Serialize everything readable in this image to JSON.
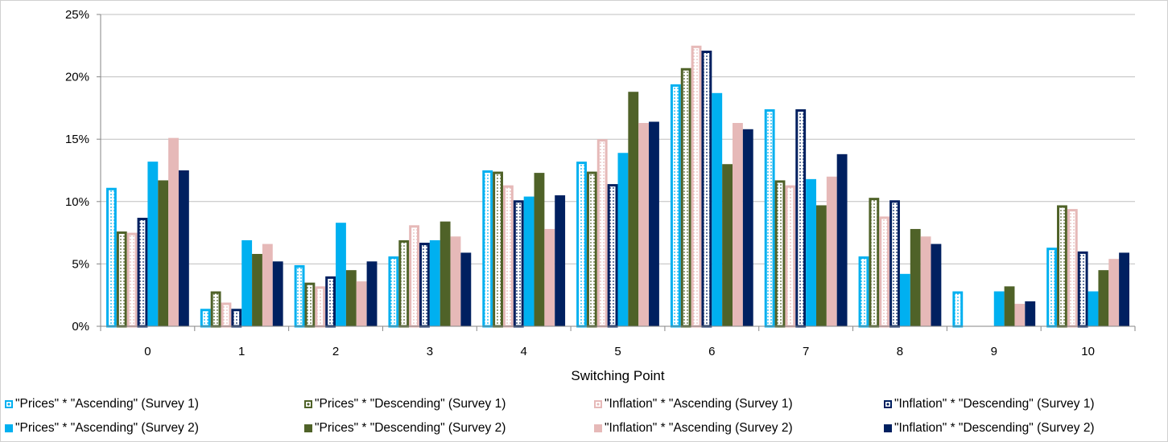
{
  "chart_data": {
    "type": "bar",
    "xlabel": "Switching Point",
    "ylabel": "",
    "ylim": [
      0,
      25
    ],
    "y_ticks": [
      "0%",
      "5%",
      "10%",
      "15%",
      "20%",
      "25%"
    ],
    "categories": [
      "0",
      "1",
      "2",
      "3",
      "4",
      "5",
      "6",
      "7",
      "8",
      "9",
      "10"
    ],
    "grid": true,
    "legend_position": "bottom",
    "series": [
      {
        "name": "\"Prices\" * \"Ascending\" (Survey 1)",
        "color": "#00b0f0",
        "style": "dotted-outline",
        "values": [
          11.1,
          1.4,
          4.9,
          5.6,
          12.5,
          13.2,
          19.4,
          17.4,
          5.6,
          2.8,
          6.3
        ]
      },
      {
        "name": "\"Prices\" * \"Descending\" (Survey 1)",
        "color": "#4f6228",
        "style": "dotted-outline",
        "values": [
          7.6,
          2.8,
          3.5,
          6.9,
          12.4,
          12.4,
          20.7,
          11.7,
          10.3,
          0,
          9.7
        ]
      },
      {
        "name": "\"Inflation\" * \"Ascending (Survey 1)",
        "color": "#e6b9b8",
        "style": "dotted-outline",
        "values": [
          7.5,
          1.9,
          3.2,
          8.1,
          11.3,
          15.0,
          22.5,
          11.3,
          8.8,
          0,
          9.4
        ]
      },
      {
        "name": "\"Inflation\" * \"Descending\"  (Survey 1)",
        "color": "#002060",
        "style": "dotted-outline",
        "values": [
          8.7,
          1.4,
          4.0,
          6.7,
          10.1,
          11.4,
          22.1,
          17.4,
          10.1,
          0,
          6.0
        ]
      },
      {
        "name": "\"Prices\" * \"Ascending\" (Survey 2)",
        "color": "#00b0f0",
        "style": "solid",
        "values": [
          13.2,
          6.9,
          8.3,
          6.9,
          10.4,
          13.9,
          18.7,
          11.8,
          4.2,
          2.8,
          2.8
        ]
      },
      {
        "name": "\"Prices\" * \"Descending\" (Survey 2)",
        "color": "#4f6228",
        "style": "solid",
        "values": [
          11.7,
          5.8,
          4.5,
          8.4,
          12.3,
          18.8,
          13.0,
          9.7,
          7.8,
          3.2,
          4.5
        ]
      },
      {
        "name": "\"Inflation\" * \"Ascending (Survey 2)",
        "color": "#e6b9b8",
        "style": "solid",
        "values": [
          15.1,
          6.6,
          3.6,
          7.2,
          7.8,
          16.3,
          16.3,
          12.0,
          7.2,
          1.8,
          5.4
        ]
      },
      {
        "name": "\"Inflation\" * \"Descending\"  (Survey 2)",
        "color": "#002060",
        "style": "solid",
        "values": [
          12.5,
          5.2,
          5.2,
          5.9,
          10.5,
          16.4,
          15.8,
          13.8,
          6.6,
          2.0,
          5.9
        ]
      }
    ]
  }
}
